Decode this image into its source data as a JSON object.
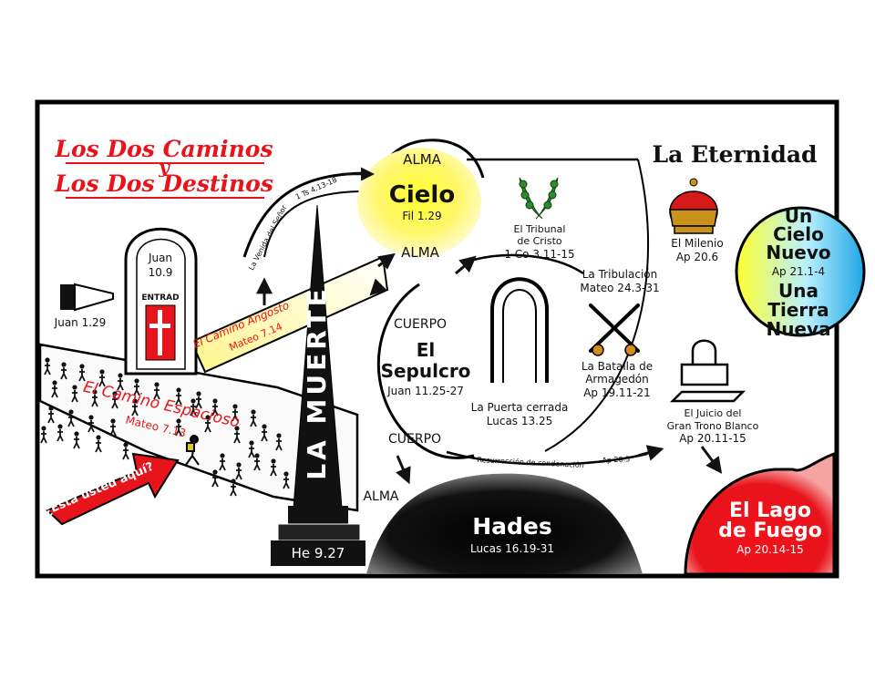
{
  "title": {
    "line1": "Los Dos Caminos",
    "joiner": "y",
    "line2": "Los Dos Destinos"
  },
  "eternity": "La Eternidad",
  "heaven": {
    "top_label": "ALMA",
    "name": "Cielo",
    "ref": "Fil 1.29",
    "bottom_label": "ALMA"
  },
  "new_creation": {
    "line1": "Un",
    "line2": "Cielo",
    "line3": "Nuevo",
    "ref": "Ap 21.1-4",
    "line4": "Una",
    "line5": "Tierra",
    "line6": "Nueva"
  },
  "tribunal": {
    "line1": "El Tribunal",
    "line2": "de Cristo",
    "ref": "1 Co 3.11-15"
  },
  "millennium": {
    "name": "El Milenio",
    "ref": "Ap 20.6"
  },
  "tribulation": {
    "name": "La Tribulación",
    "ref": "Mateo 24.3-31"
  },
  "armageddon": {
    "line1": "La Batalla de",
    "line2": "Armagedón",
    "ref": "Ap 19.11-21"
  },
  "closed_door": {
    "name": "La Puerta cerrada",
    "ref": "Lucas 13.25"
  },
  "throne_judgment": {
    "line1": "El Juicio del",
    "line2": "Gran Trono Blanco",
    "ref": "Ap 20.11-15"
  },
  "lake_of_fire": {
    "line1": "El Lago",
    "line2": "de Fuego",
    "ref": "Ap 20.14-15"
  },
  "hades": {
    "name": "Hades",
    "ref": "Lucas 16.19-31"
  },
  "grave": {
    "top_label": "CUERPO",
    "line1": "El",
    "line2": "Sepulcro",
    "ref": "Juan 11.25-27",
    "bottom_label": "CUERPO",
    "soul_label": "ALMA"
  },
  "death": {
    "name": "LA MUERTE",
    "ref": "He 9.27"
  },
  "gate": {
    "ref_name": "Juan",
    "ref_num": "10.9",
    "entry": "ENTRAD"
  },
  "pointer_ref": "Juan 1.29",
  "narrow_way": {
    "name": "El Camino Angosto",
    "ref": "Mateo 7.14"
  },
  "broad_way": {
    "name": "El Camino Espacioso",
    "ref": "Mateo 7.13"
  },
  "you_are_here": "¿Está usted aquí?",
  "rapture_ref": "1 Ts 4.13-18",
  "coming_label": "La Venida del Señor",
  "resurrection_label": "Resurrección de condenación",
  "resurrection_ref": "Ap 20.5",
  "colors": {
    "red": "#e8141b",
    "yellow": "#fff23a",
    "cyan": "#34c6ea",
    "black": "#111111"
  }
}
